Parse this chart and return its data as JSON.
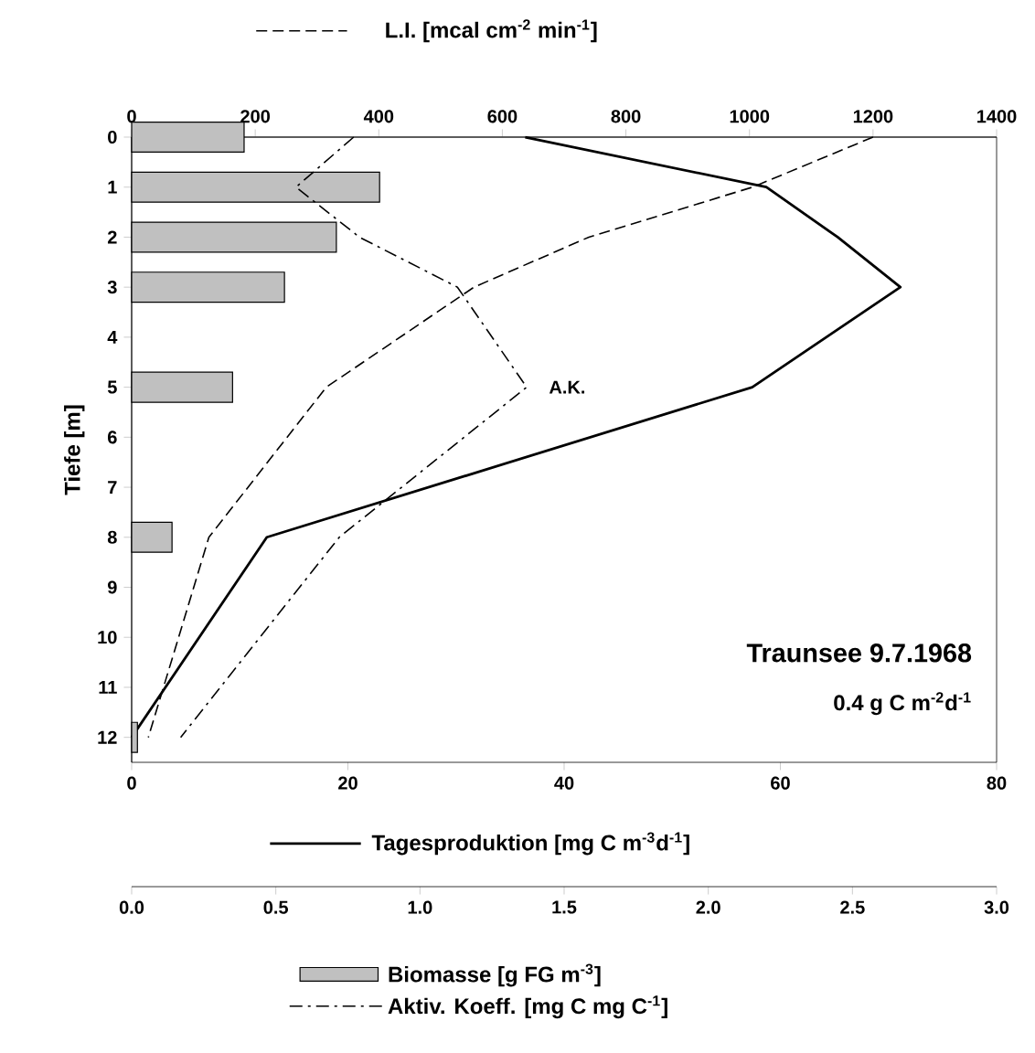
{
  "chart_data": [
    {
      "type": "line",
      "orientation": "horizontal",
      "ylabel": "Tiefe [m]",
      "xlabel": "Tagesproduktion [mg C m$^{-3}$d$^{-1}$]",
      "x2label": "L.I. [mcal cm$^{-2}$ min$^{-1}$]",
      "ylim": [
        12.5,
        0
      ],
      "yticks": [
        0,
        1,
        2,
        3,
        4,
        5,
        6,
        7,
        8,
        9,
        10,
        11,
        12
      ],
      "xlim": [
        0,
        80
      ],
      "xticks": [
        0,
        20,
        40,
        60,
        80
      ],
      "x2lim": [
        0,
        1400
      ],
      "x2ticks": [
        0,
        200,
        400,
        600,
        800,
        1000,
        1200,
        1400
      ],
      "annotations": [
        "A.K.",
        "Traunsee 9.7.1968",
        "0.4 g C m$^{-2}$d$^{-1}$"
      ],
      "series": [
        {
          "axis": "x2",
          "color": "#000000",
          "line_style": "dashed",
          "x": [
            0,
            1,
            2,
            3,
            5,
            8,
            12
          ],
          "values": [
            1200,
            1005,
            740,
            554,
            315,
            125,
            27
          ]
        },
        {
          "color": "#000000",
          "line_style": "solid",
          "x": [
            0,
            1,
            2,
            3,
            5,
            8,
            12
          ],
          "values": [
            36.4,
            58.7,
            65.3,
            71.1,
            57.4,
            12.5,
            0
          ]
        }
      ]
    },
    {
      "type": "bar",
      "orientation": "horizontal",
      "tick_labels": "x",
      "ylim": [
        12.5,
        0
      ],
      "xlim": [
        0,
        3
      ],
      "xticks": [
        {
          "value": 0,
          "label": "0.0"
        },
        0.5,
        {
          "value": 1,
          "label": "1.0"
        },
        1.5,
        {
          "value": 2,
          "label": "2.0"
        },
        2.5,
        {
          "value": 3,
          "label": "3.0"
        }
      ],
      "legend": "bottom",
      "series": [
        {
          "name": "Biomasse [g FG m$^{-3}$]",
          "color": "#c0c0c0",
          "x": [
            0,
            1,
            2,
            3,
            5,
            8,
            12
          ],
          "values": [
            0.39,
            0.86,
            0.71,
            0.53,
            0.35,
            0.14,
            0.02
          ]
        },
        {
          "name": "Aktiv. Koeff. [mg C mg C$^{-1}$]",
          "type": "line",
          "color": "#000000",
          "line_style": "dashdot",
          "x": [
            0,
            1,
            2,
            3,
            5,
            8,
            12
          ],
          "values": [
            0.77,
            0.57,
            0.79,
            1.13,
            1.37,
            0.72,
            0.17
          ]
        }
      ]
    }
  ]
}
